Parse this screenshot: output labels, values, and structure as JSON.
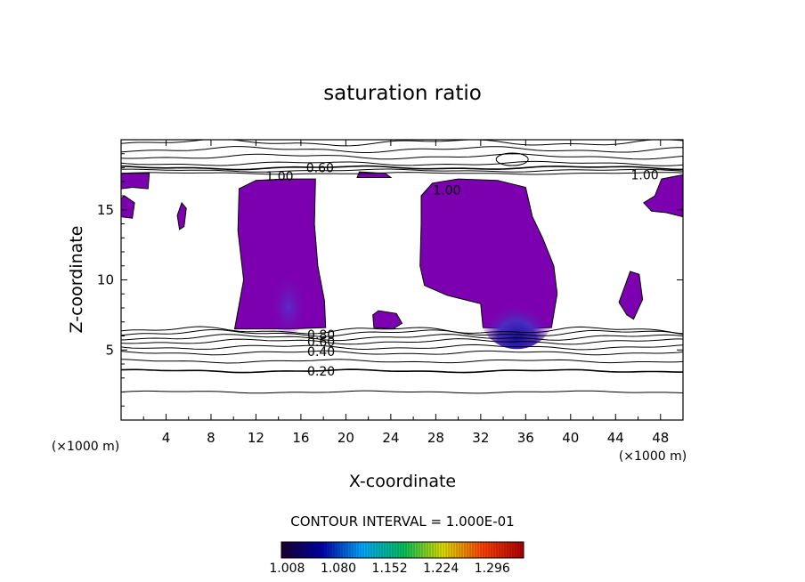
{
  "chart_data": {
    "type": "contour",
    "title": "saturation ratio",
    "xlabel": "X-coordinate",
    "ylabel": "Z-coordinate",
    "x_unit": "(×1000 m)",
    "y_unit": "(×1000 m)",
    "xlim": [
      0,
      50
    ],
    "ylim": [
      0,
      20
    ],
    "x_ticks": [
      4,
      8,
      12,
      16,
      20,
      24,
      28,
      32,
      36,
      40,
      44,
      48
    ],
    "y_ticks": [
      5,
      10,
      15
    ],
    "grid": false,
    "contour_interval_text": "CONTOUR INTERVAL = 1.000E-01",
    "contour_levels": [
      0.1,
      0.2,
      0.3,
      0.4,
      0.5,
      0.6,
      0.7,
      0.8,
      0.9,
      1.0
    ],
    "contour_labels": [
      {
        "text": "0.20",
        "x": 17.8,
        "y": 3.5
      },
      {
        "text": "0.40",
        "x": 17.8,
        "y": 4.9
      },
      {
        "text": "0.60",
        "x": 17.8,
        "y": 5.6
      },
      {
        "text": "0.80",
        "x": 17.8,
        "y": 6.1
      },
      {
        "text": "0.60",
        "x": 17.7,
        "y": 18.0
      },
      {
        "text": "1.00",
        "x": 14.1,
        "y": 17.4
      },
      {
        "text": "1.00",
        "x": 29.0,
        "y": 16.4
      },
      {
        "text": "1.00",
        "x": 46.6,
        "y": 17.5
      }
    ],
    "shaded_regions": [
      {
        "name": "supersaturated-west",
        "points": [
          [
            10.1,
            6.5
          ],
          [
            10.9,
            10
          ],
          [
            10.4,
            13.5
          ],
          [
            10.5,
            16.5
          ],
          [
            12,
            17.1
          ],
          [
            14.5,
            17.2
          ],
          [
            17.3,
            17.2
          ],
          [
            17.2,
            14
          ],
          [
            17.5,
            11
          ],
          [
            18.1,
            8.5
          ],
          [
            18.2,
            6.6
          ],
          [
            15,
            6.5
          ]
        ]
      },
      {
        "name": "supersaturated-east",
        "points": [
          [
            32.2,
            6.6
          ],
          [
            32,
            8.3
          ],
          [
            29,
            8.9
          ],
          [
            27,
            9.6
          ],
          [
            26.6,
            11
          ],
          [
            26.7,
            14
          ],
          [
            26.7,
            16
          ],
          [
            27.7,
            16.9
          ],
          [
            30,
            17.2
          ],
          [
            33.5,
            17.1
          ],
          [
            36,
            16.6
          ],
          [
            36.6,
            14.5
          ],
          [
            37.5,
            13
          ],
          [
            38.5,
            11
          ],
          [
            38.8,
            9
          ],
          [
            38.3,
            6.6
          ],
          [
            35,
            6.5
          ]
        ]
      },
      {
        "name": "patch-left-top",
        "points": [
          [
            0,
            16.5
          ],
          [
            0,
            17.6
          ],
          [
            2.5,
            17.6
          ],
          [
            2.4,
            16.5
          ],
          [
            1,
            16.6
          ]
        ]
      },
      {
        "name": "patch-left-mid",
        "points": [
          [
            0,
            14.5
          ],
          [
            1,
            14.4
          ],
          [
            1.2,
            15.5
          ],
          [
            0.3,
            16
          ],
          [
            0,
            15.8
          ]
        ]
      },
      {
        "name": "patch-left-small",
        "points": [
          [
            5.2,
            13.6
          ],
          [
            5.6,
            13.8
          ],
          [
            5.8,
            15.1
          ],
          [
            5.4,
            15.5
          ],
          [
            5.0,
            14.6
          ]
        ]
      },
      {
        "name": "patch-right-upper",
        "points": [
          [
            46.5,
            15.5
          ],
          [
            47.5,
            16
          ],
          [
            48.1,
            17.2
          ],
          [
            50,
            17.5
          ],
          [
            50,
            14.5
          ],
          [
            48.5,
            14.8
          ],
          [
            47.2,
            14.9
          ]
        ]
      },
      {
        "name": "patch-right-lower",
        "points": [
          [
            44.3,
            8.4
          ],
          [
            45.3,
            10.6
          ],
          [
            46.1,
            10.4
          ],
          [
            46.4,
            8.6
          ],
          [
            45.6,
            7.2
          ],
          [
            45.0,
            7.5
          ]
        ]
      },
      {
        "name": "patch-center-low",
        "points": [
          [
            22.5,
            6.6
          ],
          [
            22.4,
            7.5
          ],
          [
            22.9,
            7.8
          ],
          [
            24.5,
            7.6
          ],
          [
            25,
            6.9
          ],
          [
            24.2,
            6.5
          ]
        ]
      },
      {
        "name": "patch-top-center",
        "points": [
          [
            21,
            17.3
          ],
          [
            21.2,
            17.7
          ],
          [
            23.5,
            17.6
          ],
          [
            24,
            17.3
          ]
        ]
      }
    ],
    "color_bar": {
      "ticks": [
        1.008,
        1.08,
        1.152,
        1.224,
        1.296
      ],
      "tick_labels": [
        "1.008",
        "1.080",
        "1.152",
        "1.224",
        "1.296"
      ],
      "range": [
        1.0,
        1.34
      ],
      "colors": [
        "#1a0030",
        "#0000aa",
        "#00aaff",
        "#00c060",
        "#e0e000",
        "#ff4000",
        "#b00000"
      ]
    },
    "fill_color": "#7d00b0"
  }
}
